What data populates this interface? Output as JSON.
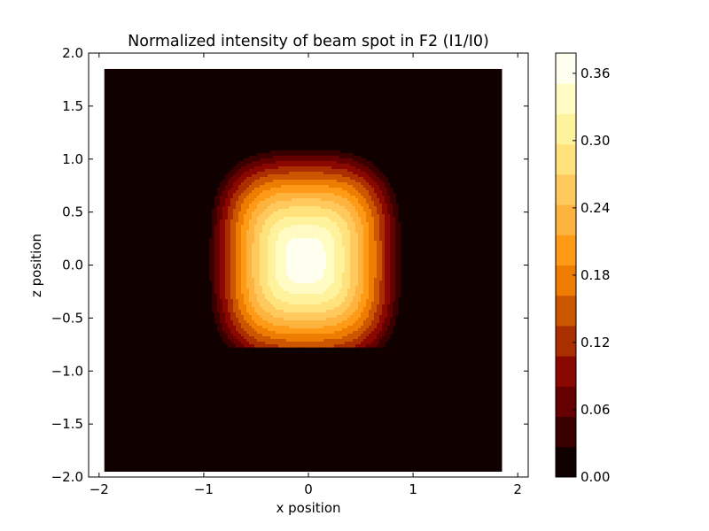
{
  "chart_data": {
    "type": "heatmap",
    "subtype": "filled-contour",
    "title": "Normalized intensity of beam spot in F2 (I1/I0)",
    "xlabel": "x position",
    "ylabel": "z position",
    "xlim": [
      -2.1,
      2.1
    ],
    "ylim": [
      -2.0,
      2.0
    ],
    "data_extent": {
      "x": [
        -1.95,
        1.85
      ],
      "z": [
        -1.95,
        1.85
      ]
    },
    "xticks": [
      -2,
      -1,
      0,
      1,
      2
    ],
    "xtick_labels": [
      "−2",
      "−1",
      "0",
      "1",
      "2"
    ],
    "yticks": [
      -2.0,
      -1.5,
      -1.0,
      -0.5,
      0.0,
      0.5,
      1.0,
      1.5,
      2.0
    ],
    "ytick_labels": [
      "−2.0",
      "−1.5",
      "−1.0",
      "−0.5",
      "0.0",
      "0.5",
      "1.0",
      "1.5",
      "2.0"
    ],
    "colormap": "afmhot",
    "background_value": 0.0,
    "beam_spot": {
      "peak_value": 0.38,
      "center_x": -0.03,
      "center_z": 0.05,
      "outer_contour_x_range": [
        -0.97,
        0.92
      ],
      "outer_contour_z_range": [
        -0.67,
        1.13
      ],
      "peak_region_z_range": [
        -0.45,
        0.4
      ]
    },
    "grid": false,
    "colorbar": {
      "levels": [
        0.0,
        0.027,
        0.054,
        0.081,
        0.108,
        0.135,
        0.162,
        0.189,
        0.216,
        0.243,
        0.27,
        0.297,
        0.324,
        0.351,
        0.378
      ],
      "colors": [
        "#100000",
        "#3a0000",
        "#640000",
        "#8a0800",
        "#aa2e00",
        "#cc5500",
        "#ee7c00",
        "#ff9a17",
        "#ffb33f",
        "#ffc95d",
        "#ffe27b",
        "#fff29c",
        "#fffbc2",
        "#fffff0"
      ],
      "ticks": [
        0.0,
        0.06,
        0.12,
        0.18,
        0.24,
        0.3,
        0.36
      ],
      "tick_labels": [
        "0.00",
        "0.06",
        "0.12",
        "0.18",
        "0.24",
        "0.30",
        "0.36"
      ]
    }
  }
}
